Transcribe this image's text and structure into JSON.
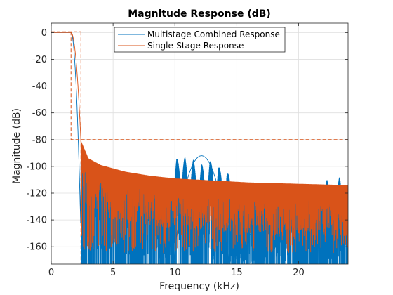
{
  "chart_data": {
    "type": "line",
    "title": "Magnitude Response (dB)",
    "xlabel": "Frequency (kHz)",
    "ylabel": "Magnitude (dB)",
    "xlim": [
      0,
      24
    ],
    "ylim": [
      -173,
      7
    ],
    "x_ticks": [
      0,
      5,
      10,
      15,
      20
    ],
    "y_ticks": [
      0,
      -20,
      -40,
      -60,
      -80,
      -100,
      -120,
      -140,
      -160
    ],
    "x_tick_labels": [
      "0",
      "5",
      "10",
      "15",
      "20"
    ],
    "y_tick_labels": [
      "0",
      "-20",
      "-40",
      "-60",
      "-80",
      "-100",
      "-120",
      "-140",
      "-160"
    ],
    "grid": true,
    "legend_position": "top-center",
    "series": [
      {
        "name": "Multistage Combined Response",
        "color": "#0072BD",
        "passband_edge_khz": 1.6,
        "stopband_start_khz": 2.4,
        "stopband_peak_khz": [
          10.2,
          10.8,
          11.5,
          12.2,
          12.9,
          13.6,
          14.3,
          22.3,
          23.3
        ],
        "stopband_peak_db": [
          -93,
          -93,
          -95,
          -98,
          -95,
          -99,
          -103,
          -110,
          -108
        ],
        "floor_db": -173
      },
      {
        "name": "Single-Stage Response",
        "color": "#D95319",
        "passband_edge_khz": 1.6,
        "stopband_start_khz": 2.4,
        "envelope_x_khz": [
          2.4,
          3,
          4,
          6,
          8,
          10,
          12,
          16,
          20,
          24
        ],
        "envelope_db": [
          -81,
          -94,
          -99,
          -104,
          -107,
          -109,
          -110,
          -112,
          -113,
          -114
        ],
        "spec_mask": {
          "passband_edge_khz": 1.6,
          "stopband_edge_khz": 2.4,
          "stopband_attenuation_db": -80,
          "style": "dashed"
        }
      }
    ]
  }
}
